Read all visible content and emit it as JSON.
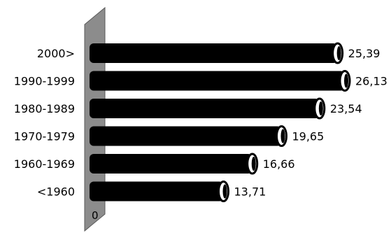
{
  "chart_data": {
    "type": "bar",
    "orientation": "horizontal",
    "style": "3d-cylinder",
    "categories": [
      "2000>",
      "1990-1999",
      "1980-1989",
      "1970-1979",
      "1960-1969",
      "<1960"
    ],
    "values": [
      25.39,
      26.13,
      23.54,
      19.65,
      16.66,
      13.71
    ],
    "value_labels": [
      "25,39",
      "26,13",
      "23,54",
      "19,65",
      "16,66",
      "13,71"
    ],
    "axis_zero_label": "0",
    "xlim": [
      0,
      26.13
    ],
    "title": "",
    "xlabel": "",
    "ylabel": "",
    "grid": false,
    "colors": {
      "bar": "#000000",
      "bar_cap": "#ffffff",
      "axis_wall": "#8c8c8c",
      "axis_wall_edge": "#5a5a5a",
      "text": "#000000"
    }
  }
}
